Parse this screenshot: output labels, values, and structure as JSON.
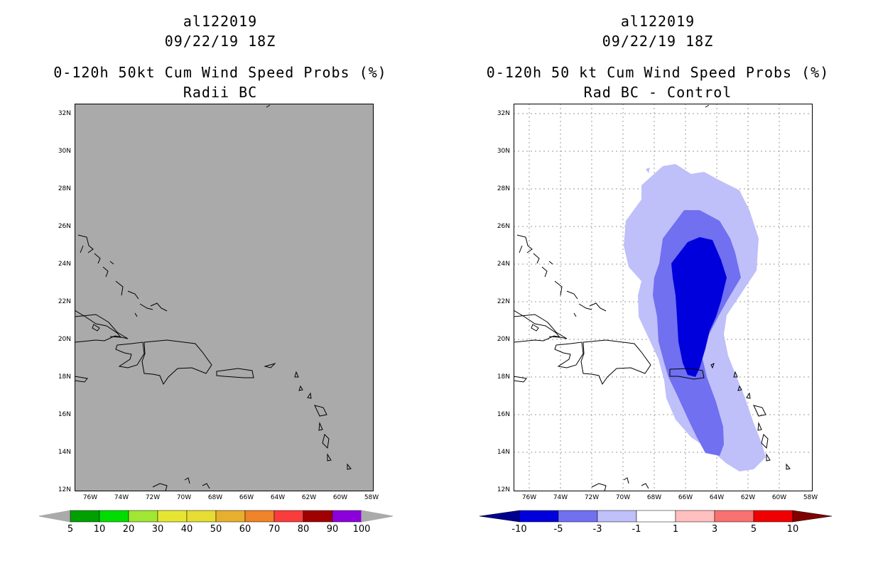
{
  "left": {
    "storm_id": "al122019",
    "datetime": "09/22/19 18Z",
    "title": "0-120h 50kt Cum Wind Speed Probs (%)",
    "subtitle": "Radii BC",
    "background": "#aaaaaa",
    "colorbar": {
      "colors": [
        "#00a000",
        "#00dc00",
        "#a0e632",
        "#e6e632",
        "#e6dc32",
        "#e6af2d",
        "#f08228",
        "#fa3c3c",
        "#a00000",
        "#8c00dc"
      ],
      "labels": [
        "5",
        "10",
        "20",
        "30",
        "40",
        "50",
        "60",
        "70",
        "80",
        "90",
        "100"
      ]
    }
  },
  "right": {
    "storm_id": "al122019",
    "datetime": "09/22/19 18Z",
    "title": "0-120h 50 kt Cum Wind Speed Probs (%)",
    "subtitle": "Rad BC - Control",
    "background": "#ffffff",
    "contour_colors": {
      "light": "#bfbff9",
      "mid": "#7070f0",
      "dark": "#0000dd"
    },
    "colorbar": {
      "colors": [
        "#0000dd",
        "#7070f0",
        "#bfbff9",
        "#ffffff",
        "#ffbfbf",
        "#f97070",
        "#f00000"
      ],
      "end_low": "#000090",
      "end_high": "#800000",
      "labels": [
        "-10",
        "-5",
        "-3",
        "-1",
        "1",
        "3",
        "5",
        "10"
      ]
    }
  },
  "lat_labels": [
    "32N",
    "30N",
    "28N",
    "26N",
    "24N",
    "22N",
    "20N",
    "18N",
    "16N",
    "14N",
    "12N"
  ],
  "lon_labels": [
    "76W",
    "74W",
    "72W",
    "70W",
    "68W",
    "66W",
    "64W",
    "62W",
    "60W",
    "58W"
  ]
}
